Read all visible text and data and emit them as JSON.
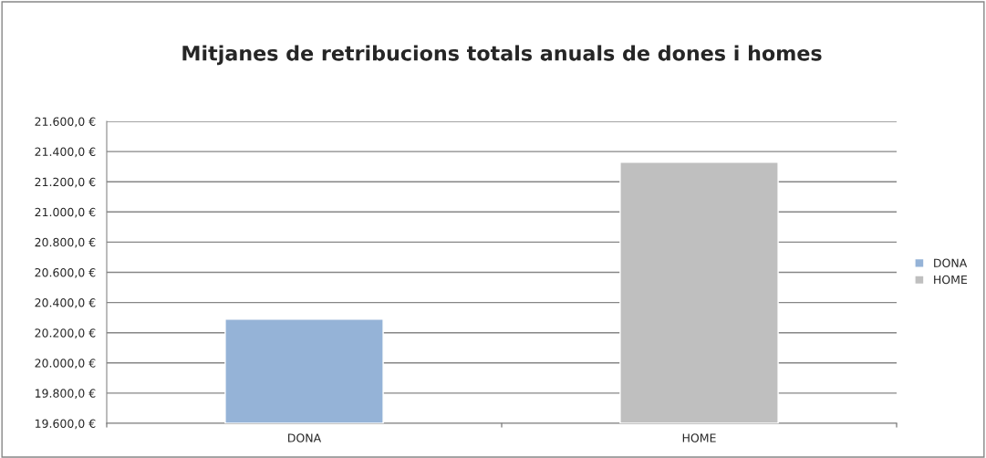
{
  "chart_data": {
    "type": "bar",
    "title": "Mitjanes de retribucions totals anuals de dones i homes",
    "categories": [
      "DONA",
      "HOME"
    ],
    "series": [
      {
        "name": "DONA",
        "color": "#95b3d7",
        "values": [
          20290,
          null
        ]
      },
      {
        "name": "HOME",
        "color": "#bfbfbf",
        "values": [
          null,
          21330
        ]
      }
    ],
    "ylim": [
      19600,
      21600
    ],
    "yticks": [
      {
        "value": 19600,
        "label": "19.600,0 €"
      },
      {
        "value": 19800,
        "label": "19.800,0 €"
      },
      {
        "value": 20000,
        "label": "20.000,0 €"
      },
      {
        "value": 20200,
        "label": "20.200,0 €"
      },
      {
        "value": 20400,
        "label": "20.400,0 €"
      },
      {
        "value": 20600,
        "label": "20.600,0 €"
      },
      {
        "value": 20800,
        "label": "20.800,0 €"
      },
      {
        "value": 21000,
        "label": "21.000,0 €"
      },
      {
        "value": 21200,
        "label": "21.200,0 €"
      },
      {
        "value": 21400,
        "label": "21.400,0 €"
      },
      {
        "value": 21600,
        "label": "21.600,0 €"
      }
    ],
    "grid": "y",
    "legend": "right"
  }
}
